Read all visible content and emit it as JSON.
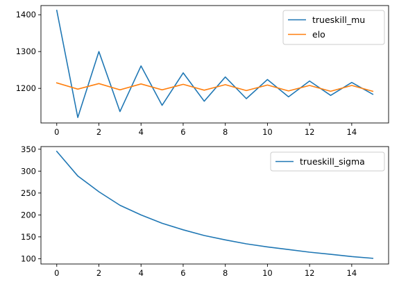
{
  "chart_data": [
    {
      "type": "line",
      "x": [
        0,
        1,
        2,
        3,
        4,
        5,
        6,
        7,
        8,
        9,
        10,
        11,
        12,
        13,
        14,
        15
      ],
      "xticks": [
        0,
        2,
        4,
        6,
        8,
        10,
        12,
        14
      ],
      "xlim": [
        -0.75,
        15.75
      ],
      "yticks": [
        1200,
        1300,
        1400
      ],
      "ylim": [
        1106,
        1425
      ],
      "legend": "upper-right",
      "grid": false,
      "series": [
        {
          "name": "trueskill_mu",
          "color": "#1f77b4",
          "values": [
            1412,
            1121,
            1300,
            1137,
            1261,
            1154,
            1242,
            1165,
            1231,
            1172,
            1224,
            1177,
            1220,
            1181,
            1216,
            1184
          ]
        },
        {
          "name": "elo",
          "color": "#ff7f0e",
          "values": [
            1215,
            1198,
            1213,
            1196,
            1212,
            1196,
            1211,
            1195,
            1210,
            1194,
            1209,
            1193,
            1208,
            1192,
            1208,
            1192
          ]
        }
      ]
    },
    {
      "type": "line",
      "x": [
        0,
        1,
        2,
        3,
        4,
        5,
        6,
        7,
        8,
        9,
        10,
        11,
        12,
        13,
        14,
        15
      ],
      "xticks": [
        0,
        2,
        4,
        6,
        8,
        10,
        12,
        14
      ],
      "xlim": [
        -0.75,
        15.75
      ],
      "yticks": [
        100,
        150,
        200,
        250,
        300,
        350
      ],
      "ylim": [
        88,
        356
      ],
      "legend": "upper-right",
      "grid": false,
      "series": [
        {
          "name": "trueskill_sigma",
          "color": "#1f77b4",
          "values": [
            345,
            289,
            253,
            222,
            200,
            181,
            166,
            153,
            143,
            134,
            127,
            121,
            115,
            110,
            105,
            101
          ]
        }
      ]
    }
  ]
}
